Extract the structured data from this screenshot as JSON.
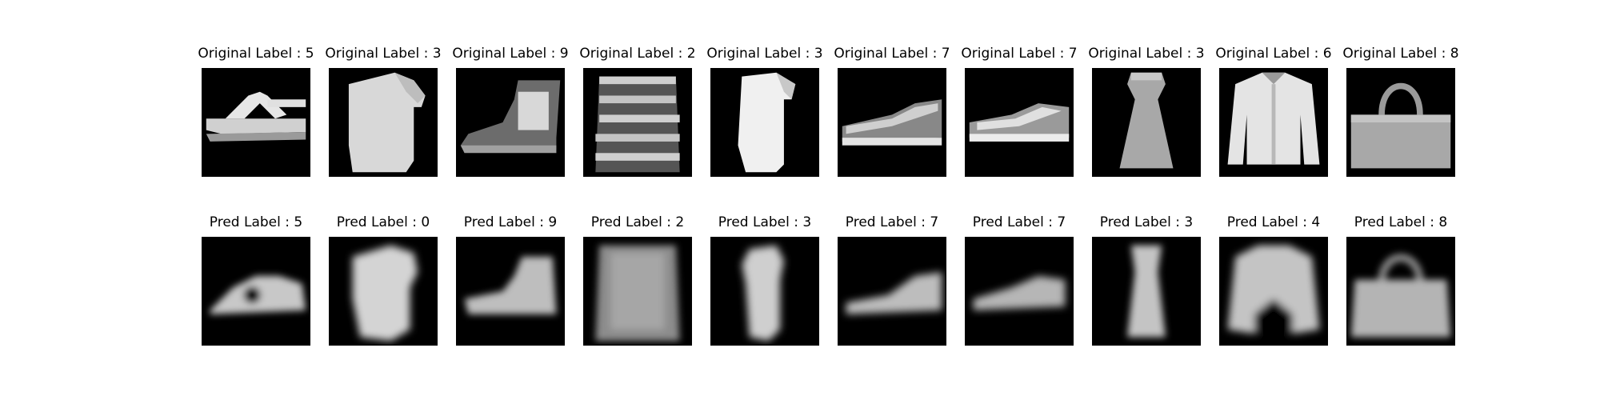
{
  "figure": {
    "original_row": [
      {
        "label": "Original Label : 5",
        "item": "sandal-image"
      },
      {
        "label": "Original Label : 3",
        "item": "dress-image"
      },
      {
        "label": "Original Label : 9",
        "item": "ankle-boot-image"
      },
      {
        "label": "Original Label : 2",
        "item": "striped-pullover-image"
      },
      {
        "label": "Original Label : 3",
        "item": "dress-image"
      },
      {
        "label": "Original Label : 7",
        "item": "sneaker-image"
      },
      {
        "label": "Original Label : 7",
        "item": "sneaker-image"
      },
      {
        "label": "Original Label : 3",
        "item": "dress-image"
      },
      {
        "label": "Original Label : 6",
        "item": "shirt-image"
      },
      {
        "label": "Original Label : 8",
        "item": "bag-image"
      }
    ],
    "pred_row": [
      {
        "label": "Pred Label : 5",
        "item": "blurred-sandal-image"
      },
      {
        "label": "Pred Label : 0",
        "item": "blurred-dress-image"
      },
      {
        "label": "Pred Label : 9",
        "item": "blurred-boot-image"
      },
      {
        "label": "Pred Label : 2",
        "item": "blurred-pullover-image"
      },
      {
        "label": "Pred Label : 3",
        "item": "blurred-dress-image"
      },
      {
        "label": "Pred Label : 7",
        "item": "blurred-sneaker-image"
      },
      {
        "label": "Pred Label : 7",
        "item": "blurred-sneaker-image"
      },
      {
        "label": "Pred Label : 3",
        "item": "blurred-dress-image"
      },
      {
        "label": "Pred Label : 4",
        "item": "blurred-coat-image"
      },
      {
        "label": "Pred Label : 8",
        "item": "blurred-bag-image"
      }
    ]
  }
}
